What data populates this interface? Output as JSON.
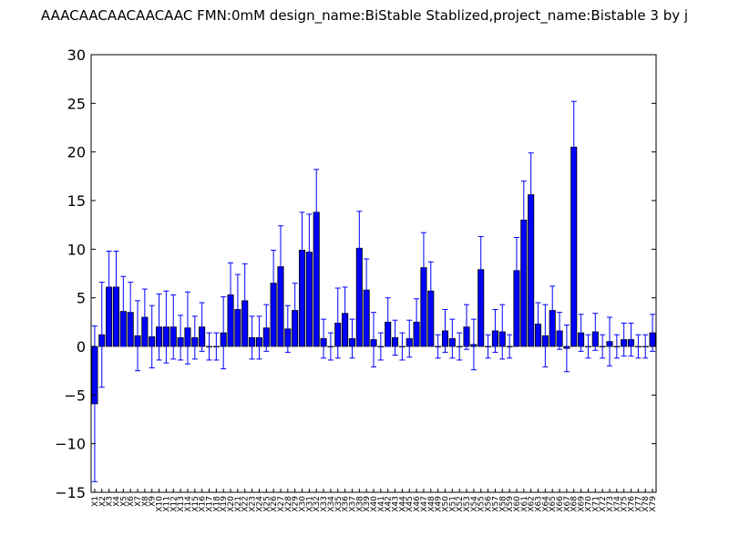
{
  "chart_data": {
    "type": "bar",
    "title": "AAACAACAACAACAAC  FMN:0mM  design_name:BiStable Stablized,project_name:Bistable 3 by j",
    "xlabel": "",
    "ylabel": "",
    "ylim": [
      -15,
      30
    ],
    "yticks": [
      -15,
      -10,
      -5,
      0,
      5,
      10,
      15,
      20,
      25,
      30
    ],
    "ytick_labels": [
      "−15",
      "−10",
      "−5",
      "0",
      "5",
      "10",
      "15",
      "20",
      "25",
      "30"
    ],
    "grid": false,
    "colors": {
      "bar": "#0000ff",
      "edge": "#000000",
      "error": "#0000ff"
    },
    "categories": [
      "X1",
      "X2",
      "X3",
      "X4",
      "X5",
      "X6",
      "X7",
      "X8",
      "X9",
      "X10",
      "X11",
      "X12",
      "X13",
      "X14",
      "X15",
      "X16",
      "X17",
      "X18",
      "X19",
      "X20",
      "X21",
      "X22",
      "X23",
      "X24",
      "X25",
      "X26",
      "X27",
      "X28",
      "X29",
      "X30",
      "X31",
      "X32",
      "X33",
      "X34",
      "X35",
      "X36",
      "X37",
      "X38",
      "X39",
      "X40",
      "X41",
      "X42",
      "X43",
      "X44",
      "X45",
      "X46",
      "X47",
      "X48",
      "X49",
      "X50",
      "X51",
      "X52",
      "X53",
      "X54",
      "X55",
      "X56",
      "X57",
      "X58",
      "X59",
      "X60",
      "X61",
      "X62",
      "X63",
      "X64",
      "X65",
      "X66",
      "X67",
      "X68",
      "X69",
      "X70",
      "X71",
      "X72",
      "X73",
      "X74",
      "X75",
      "X76",
      "X77",
      "X78",
      "X79"
    ],
    "values": [
      -5.9,
      1.2,
      6.1,
      6.1,
      3.6,
      3.5,
      1.1,
      3.0,
      1.0,
      2.0,
      2.0,
      2.0,
      0.9,
      1.9,
      0.9,
      2.0,
      0.0,
      0.0,
      1.4,
      5.3,
      3.8,
      4.7,
      0.9,
      0.9,
      1.9,
      6.5,
      8.2,
      1.8,
      3.7,
      9.9,
      9.7,
      13.8,
      0.8,
      0.0,
      2.4,
      3.4,
      0.8,
      10.1,
      5.8,
      0.7,
      0.0,
      2.5,
      0.9,
      0.0,
      0.8,
      2.5,
      8.1,
      5.7,
      0.0,
      1.6,
      0.8,
      0.0,
      2.0,
      0.2,
      7.9,
      0.0,
      1.6,
      1.5,
      0.0,
      7.8,
      13.0,
      15.6,
      2.3,
      1.1,
      3.7,
      1.6,
      -0.2,
      20.5,
      1.4,
      0.0,
      1.5,
      0.0,
      0.5,
      0.0,
      0.7,
      0.7,
      0.0,
      0.0,
      1.4
    ],
    "errors": [
      8.0,
      5.4,
      3.7,
      3.7,
      3.6,
      3.1,
      3.6,
      2.9,
      3.2,
      3.4,
      3.7,
      3.3,
      2.3,
      3.7,
      2.2,
      2.5,
      1.4,
      1.4,
      3.7,
      3.3,
      3.6,
      3.8,
      2.2,
      2.2,
      2.4,
      3.4,
      4.2,
      2.4,
      2.8,
      3.9,
      3.9,
      4.4,
      2.0,
      1.4,
      3.6,
      2.7,
      2.0,
      3.8,
      3.2,
      2.8,
      1.4,
      2.5,
      1.8,
      1.4,
      1.9,
      2.4,
      3.6,
      3.0,
      1.2,
      2.2,
      2.0,
      1.4,
      2.3,
      2.6,
      3.4,
      1.2,
      2.2,
      2.8,
      1.2,
      3.4,
      4.0,
      4.3,
      2.2,
      3.2,
      2.5,
      1.9,
      2.4,
      4.7,
      1.9,
      1.2,
      1.9,
      1.2,
      2.5,
      1.2,
      1.7,
      1.7,
      1.2,
      1.2,
      1.9
    ]
  }
}
